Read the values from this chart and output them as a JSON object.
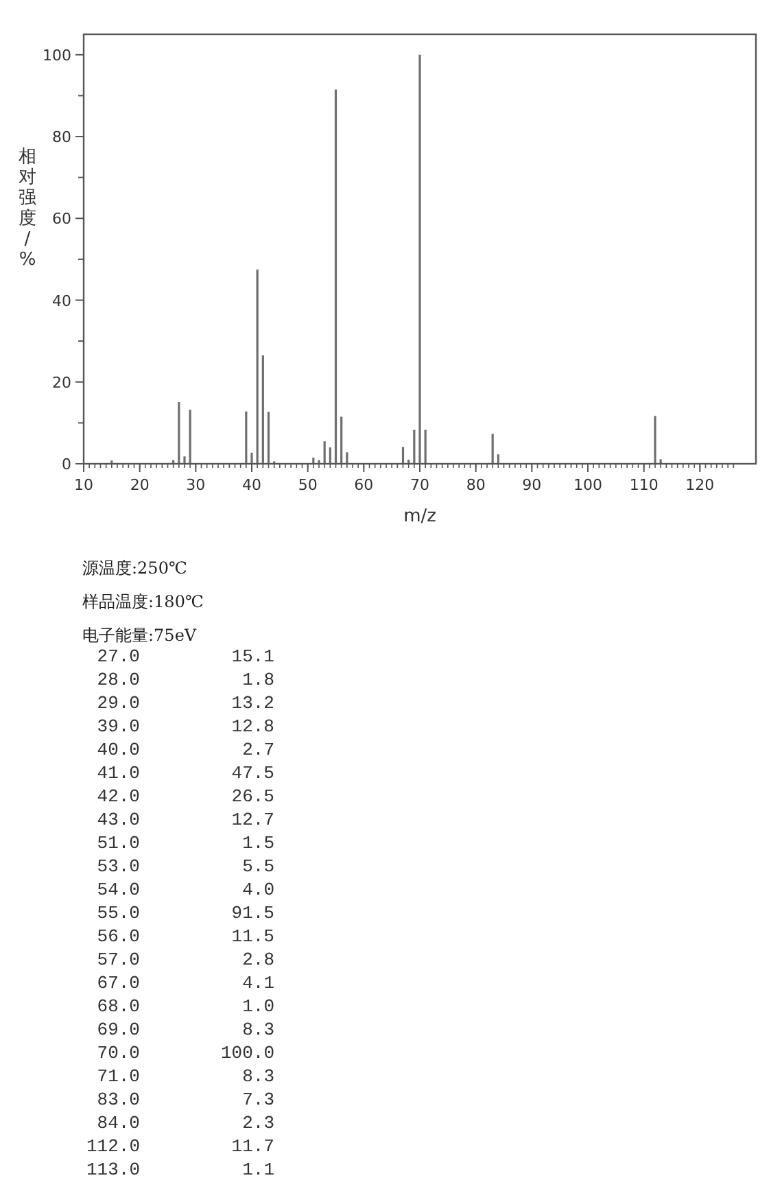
{
  "chart_data": [
    {
      "type": "bar",
      "xlabel": "m/z",
      "ylabel": "相对强度/%",
      "color": "#6e6e6e",
      "x": [
        15,
        26,
        27,
        28,
        29,
        39,
        40,
        41,
        42,
        43,
        44,
        51,
        52,
        53,
        54,
        55,
        56,
        57,
        67,
        68,
        69,
        70,
        71,
        83,
        84,
        112,
        113
      ],
      "values": [
        0.8,
        0.9,
        15.1,
        1.8,
        13.2,
        12.8,
        2.7,
        47.5,
        26.5,
        12.7,
        0.6,
        1.5,
        0.9,
        5.5,
        4.0,
        91.5,
        11.5,
        2.8,
        4.1,
        1.0,
        8.3,
        100.0,
        8.3,
        7.3,
        2.3,
        11.7,
        1.1
      ],
      "xlim": [
        10,
        130
      ],
      "ylim": [
        0,
        105
      ],
      "xticks": [
        10,
        20,
        30,
        40,
        50,
        60,
        70,
        80,
        90,
        100,
        110,
        120
      ],
      "yticks": [
        0,
        20,
        40,
        60,
        80,
        100
      ]
    },
    {
      "type": "other",
      "annotations": [
        "源温度:250℃",
        "样品温度:180℃",
        "电子能量:75eV"
      ],
      "categories": [
        "27.0",
        "28.0",
        "29.0",
        "39.0",
        "40.0",
        "41.0",
        "42.0",
        "43.0",
        "51.0",
        "53.0",
        "54.0",
        "55.0",
        "56.0",
        "57.0",
        "67.0",
        "68.0",
        "69.0",
        "70.0",
        "71.0",
        "83.0",
        "84.0",
        "112.0",
        "113.0"
      ],
      "value_labels": [
        "15.1",
        "1.8",
        "13.2",
        "12.8",
        "2.7",
        "47.5",
        "26.5",
        "12.7",
        "1.5",
        "5.5",
        "4.0",
        "91.5",
        "11.5",
        "2.8",
        "4.1",
        "1.0",
        "8.3",
        "100.0",
        "8.3",
        "7.3",
        "2.3",
        "11.7",
        "1.1"
      ]
    }
  ]
}
